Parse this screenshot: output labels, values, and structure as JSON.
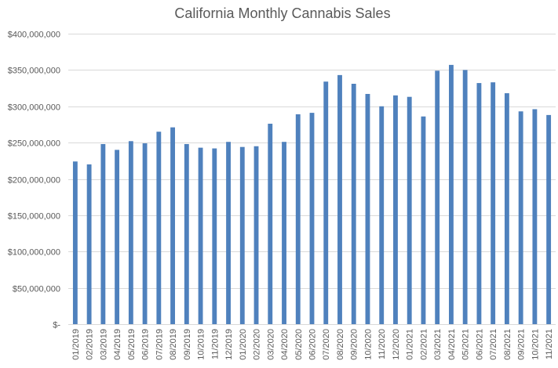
{
  "chart_data": {
    "type": "bar",
    "title": "California Monthly Cannabis Sales",
    "xlabel": "",
    "ylabel": "",
    "ylim": [
      0,
      400000000
    ],
    "y_ticks": [
      0,
      50000000,
      100000000,
      150000000,
      200000000,
      250000000,
      300000000,
      350000000,
      400000000
    ],
    "y_tick_labels": [
      "$-",
      "$50,000,000",
      "$100,000,000",
      "$150,000,000",
      "$200,000,000",
      "$250,000,000",
      "$300,000,000",
      "$350,000,000",
      "$400,000,000"
    ],
    "grid": true,
    "legend": "none",
    "bar_color": "#4F81BD",
    "categories": [
      "01/2019",
      "02/2019",
      "03/2019",
      "04/2019",
      "05/2019",
      "06/2019",
      "07/2019",
      "08/2019",
      "09/2019",
      "10/2019",
      "11/2019",
      "12/2019",
      "01/2020",
      "02/2020",
      "03/2020",
      "04/2020",
      "05/2020",
      "06/2020",
      "07/2020",
      "08/2020",
      "09/2020",
      "10/2020",
      "11/2020",
      "12/2020",
      "01/2021",
      "02/2021",
      "03/2021",
      "04/2021",
      "05/2021",
      "06/2021",
      "07/2021",
      "08/2021",
      "09/2021",
      "10/2021",
      "11/2021"
    ],
    "values": [
      224000000,
      220000000,
      248000000,
      240000000,
      252000000,
      249000000,
      265000000,
      271000000,
      248000000,
      243000000,
      242000000,
      251000000,
      244000000,
      245000000,
      276000000,
      251000000,
      289000000,
      291000000,
      334000000,
      343000000,
      331000000,
      317000000,
      300000000,
      315000000,
      313000000,
      286000000,
      349000000,
      357000000,
      350000000,
      332000000,
      333000000,
      318000000,
      293000000,
      296000000,
      288000000
    ]
  }
}
